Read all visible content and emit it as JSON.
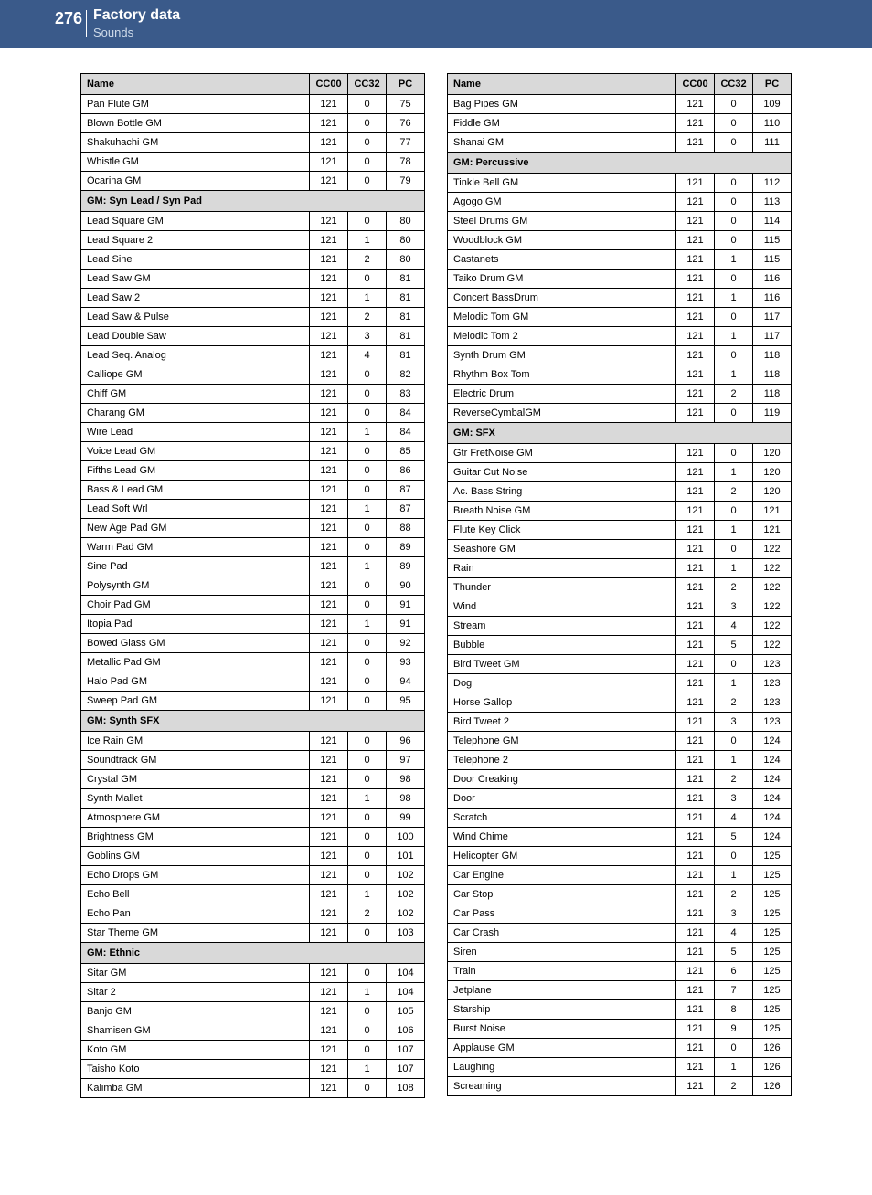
{
  "header": {
    "page_number": "276",
    "title": "Factory data",
    "subtitle": "Sounds"
  },
  "columns": {
    "name": "Name",
    "cc00": "CC00",
    "cc32": "CC32",
    "pc": "PC"
  },
  "left": [
    {
      "type": "row",
      "name": "Pan Flute GM",
      "cc00": "121",
      "cc32": "0",
      "pc": "75"
    },
    {
      "type": "row",
      "name": "Blown Bottle GM",
      "cc00": "121",
      "cc32": "0",
      "pc": "76"
    },
    {
      "type": "row",
      "name": "Shakuhachi GM",
      "cc00": "121",
      "cc32": "0",
      "pc": "77"
    },
    {
      "type": "row",
      "name": "Whistle GM",
      "cc00": "121",
      "cc32": "0",
      "pc": "78"
    },
    {
      "type": "row",
      "name": "Ocarina GM",
      "cc00": "121",
      "cc32": "0",
      "pc": "79"
    },
    {
      "type": "section",
      "label": "GM: Syn Lead / Syn Pad"
    },
    {
      "type": "row",
      "name": "Lead Square GM",
      "cc00": "121",
      "cc32": "0",
      "pc": "80"
    },
    {
      "type": "row",
      "name": "Lead Square 2",
      "cc00": "121",
      "cc32": "1",
      "pc": "80"
    },
    {
      "type": "row",
      "name": "Lead Sine",
      "cc00": "121",
      "cc32": "2",
      "pc": "80"
    },
    {
      "type": "row",
      "name": "Lead Saw GM",
      "cc00": "121",
      "cc32": "0",
      "pc": "81"
    },
    {
      "type": "row",
      "name": "Lead Saw 2",
      "cc00": "121",
      "cc32": "1",
      "pc": "81"
    },
    {
      "type": "row",
      "name": "Lead Saw & Pulse",
      "cc00": "121",
      "cc32": "2",
      "pc": "81"
    },
    {
      "type": "row",
      "name": "Lead Double Saw",
      "cc00": "121",
      "cc32": "3",
      "pc": "81"
    },
    {
      "type": "row",
      "name": "Lead Seq. Analog",
      "cc00": "121",
      "cc32": "4",
      "pc": "81"
    },
    {
      "type": "row",
      "name": "Calliope GM",
      "cc00": "121",
      "cc32": "0",
      "pc": "82"
    },
    {
      "type": "row",
      "name": "Chiff GM",
      "cc00": "121",
      "cc32": "0",
      "pc": "83"
    },
    {
      "type": "row",
      "name": "Charang GM",
      "cc00": "121",
      "cc32": "0",
      "pc": "84"
    },
    {
      "type": "row",
      "name": "Wire Lead",
      "cc00": "121",
      "cc32": "1",
      "pc": "84"
    },
    {
      "type": "row",
      "name": "Voice Lead GM",
      "cc00": "121",
      "cc32": "0",
      "pc": "85"
    },
    {
      "type": "row",
      "name": "Fifths Lead GM",
      "cc00": "121",
      "cc32": "0",
      "pc": "86"
    },
    {
      "type": "row",
      "name": "Bass & Lead GM",
      "cc00": "121",
      "cc32": "0",
      "pc": "87"
    },
    {
      "type": "row",
      "name": "Lead Soft Wrl",
      "cc00": "121",
      "cc32": "1",
      "pc": "87"
    },
    {
      "type": "row",
      "name": "New Age Pad GM",
      "cc00": "121",
      "cc32": "0",
      "pc": "88"
    },
    {
      "type": "row",
      "name": "Warm Pad GM",
      "cc00": "121",
      "cc32": "0",
      "pc": "89"
    },
    {
      "type": "row",
      "name": "Sine Pad",
      "cc00": "121",
      "cc32": "1",
      "pc": "89"
    },
    {
      "type": "row",
      "name": "Polysynth GM",
      "cc00": "121",
      "cc32": "0",
      "pc": "90"
    },
    {
      "type": "row",
      "name": "Choir Pad GM",
      "cc00": "121",
      "cc32": "0",
      "pc": "91"
    },
    {
      "type": "row",
      "name": "Itopia Pad",
      "cc00": "121",
      "cc32": "1",
      "pc": "91"
    },
    {
      "type": "row",
      "name": "Bowed Glass GM",
      "cc00": "121",
      "cc32": "0",
      "pc": "92"
    },
    {
      "type": "row",
      "name": "Metallic Pad GM",
      "cc00": "121",
      "cc32": "0",
      "pc": "93"
    },
    {
      "type": "row",
      "name": "Halo Pad GM",
      "cc00": "121",
      "cc32": "0",
      "pc": "94"
    },
    {
      "type": "row",
      "name": "Sweep Pad GM",
      "cc00": "121",
      "cc32": "0",
      "pc": "95"
    },
    {
      "type": "section",
      "label": "GM: Synth SFX"
    },
    {
      "type": "row",
      "name": "Ice Rain GM",
      "cc00": "121",
      "cc32": "0",
      "pc": "96"
    },
    {
      "type": "row",
      "name": "Soundtrack GM",
      "cc00": "121",
      "cc32": "0",
      "pc": "97"
    },
    {
      "type": "row",
      "name": "Crystal GM",
      "cc00": "121",
      "cc32": "0",
      "pc": "98"
    },
    {
      "type": "row",
      "name": "Synth Mallet",
      "cc00": "121",
      "cc32": "1",
      "pc": "98"
    },
    {
      "type": "row",
      "name": "Atmosphere GM",
      "cc00": "121",
      "cc32": "0",
      "pc": "99"
    },
    {
      "type": "row",
      "name": "Brightness GM",
      "cc00": "121",
      "cc32": "0",
      "pc": "100"
    },
    {
      "type": "row",
      "name": "Goblins GM",
      "cc00": "121",
      "cc32": "0",
      "pc": "101"
    },
    {
      "type": "row",
      "name": "Echo Drops GM",
      "cc00": "121",
      "cc32": "0",
      "pc": "102"
    },
    {
      "type": "row",
      "name": "Echo Bell",
      "cc00": "121",
      "cc32": "1",
      "pc": "102"
    },
    {
      "type": "row",
      "name": "Echo Pan",
      "cc00": "121",
      "cc32": "2",
      "pc": "102"
    },
    {
      "type": "row",
      "name": "Star Theme GM",
      "cc00": "121",
      "cc32": "0",
      "pc": "103"
    },
    {
      "type": "section",
      "label": "GM: Ethnic"
    },
    {
      "type": "row",
      "name": "Sitar GM",
      "cc00": "121",
      "cc32": "0",
      "pc": "104"
    },
    {
      "type": "row",
      "name": "Sitar 2",
      "cc00": "121",
      "cc32": "1",
      "pc": "104"
    },
    {
      "type": "row",
      "name": "Banjo GM",
      "cc00": "121",
      "cc32": "0",
      "pc": "105"
    },
    {
      "type": "row",
      "name": "Shamisen GM",
      "cc00": "121",
      "cc32": "0",
      "pc": "106"
    },
    {
      "type": "row",
      "name": "Koto GM",
      "cc00": "121",
      "cc32": "0",
      "pc": "107"
    },
    {
      "type": "row",
      "name": "Taisho Koto",
      "cc00": "121",
      "cc32": "1",
      "pc": "107"
    },
    {
      "type": "row",
      "name": "Kalimba GM",
      "cc00": "121",
      "cc32": "0",
      "pc": "108"
    }
  ],
  "right": [
    {
      "type": "row",
      "name": "Bag Pipes GM",
      "cc00": "121",
      "cc32": "0",
      "pc": "109"
    },
    {
      "type": "row",
      "name": "Fiddle GM",
      "cc00": "121",
      "cc32": "0",
      "pc": "110"
    },
    {
      "type": "row",
      "name": "Shanai GM",
      "cc00": "121",
      "cc32": "0",
      "pc": "111"
    },
    {
      "type": "section",
      "label": "GM: Percussive"
    },
    {
      "type": "row",
      "name": "Tinkle Bell GM",
      "cc00": "121",
      "cc32": "0",
      "pc": "112"
    },
    {
      "type": "row",
      "name": "Agogo GM",
      "cc00": "121",
      "cc32": "0",
      "pc": "113"
    },
    {
      "type": "row",
      "name": "Steel Drums GM",
      "cc00": "121",
      "cc32": "0",
      "pc": "114"
    },
    {
      "type": "row",
      "name": "Woodblock GM",
      "cc00": "121",
      "cc32": "0",
      "pc": "115"
    },
    {
      "type": "row",
      "name": "Castanets",
      "cc00": "121",
      "cc32": "1",
      "pc": "115"
    },
    {
      "type": "row",
      "name": "Taiko Drum GM",
      "cc00": "121",
      "cc32": "0",
      "pc": "116"
    },
    {
      "type": "row",
      "name": "Concert BassDrum",
      "cc00": "121",
      "cc32": "1",
      "pc": "116"
    },
    {
      "type": "row",
      "name": "Melodic Tom GM",
      "cc00": "121",
      "cc32": "0",
      "pc": "117"
    },
    {
      "type": "row",
      "name": "Melodic Tom 2",
      "cc00": "121",
      "cc32": "1",
      "pc": "117"
    },
    {
      "type": "row",
      "name": "Synth Drum GM",
      "cc00": "121",
      "cc32": "0",
      "pc": "118"
    },
    {
      "type": "row",
      "name": "Rhythm Box Tom",
      "cc00": "121",
      "cc32": "1",
      "pc": "118"
    },
    {
      "type": "row",
      "name": "Electric Drum",
      "cc00": "121",
      "cc32": "2",
      "pc": "118"
    },
    {
      "type": "row",
      "name": "ReverseCymbalGM",
      "cc00": "121",
      "cc32": "0",
      "pc": "119"
    },
    {
      "type": "section",
      "label": "GM: SFX"
    },
    {
      "type": "row",
      "name": "Gtr FretNoise GM",
      "cc00": "121",
      "cc32": "0",
      "pc": "120"
    },
    {
      "type": "row",
      "name": "Guitar Cut Noise",
      "cc00": "121",
      "cc32": "1",
      "pc": "120"
    },
    {
      "type": "row",
      "name": "Ac. Bass String",
      "cc00": "121",
      "cc32": "2",
      "pc": "120"
    },
    {
      "type": "row",
      "name": "Breath Noise GM",
      "cc00": "121",
      "cc32": "0",
      "pc": "121"
    },
    {
      "type": "row",
      "name": "Flute Key Click",
      "cc00": "121",
      "cc32": "1",
      "pc": "121"
    },
    {
      "type": "row",
      "name": "Seashore GM",
      "cc00": "121",
      "cc32": "0",
      "pc": "122"
    },
    {
      "type": "row",
      "name": "Rain",
      "cc00": "121",
      "cc32": "1",
      "pc": "122"
    },
    {
      "type": "row",
      "name": "Thunder",
      "cc00": "121",
      "cc32": "2",
      "pc": "122"
    },
    {
      "type": "row",
      "name": "Wind",
      "cc00": "121",
      "cc32": "3",
      "pc": "122"
    },
    {
      "type": "row",
      "name": "Stream",
      "cc00": "121",
      "cc32": "4",
      "pc": "122"
    },
    {
      "type": "row",
      "name": "Bubble",
      "cc00": "121",
      "cc32": "5",
      "pc": "122"
    },
    {
      "type": "row",
      "name": "Bird Tweet GM",
      "cc00": "121",
      "cc32": "0",
      "pc": "123"
    },
    {
      "type": "row",
      "name": "Dog",
      "cc00": "121",
      "cc32": "1",
      "pc": "123"
    },
    {
      "type": "row",
      "name": "Horse Gallop",
      "cc00": "121",
      "cc32": "2",
      "pc": "123"
    },
    {
      "type": "row",
      "name": "Bird Tweet 2",
      "cc00": "121",
      "cc32": "3",
      "pc": "123"
    },
    {
      "type": "row",
      "name": "Telephone GM",
      "cc00": "121",
      "cc32": "0",
      "pc": "124"
    },
    {
      "type": "row",
      "name": "Telephone 2",
      "cc00": "121",
      "cc32": "1",
      "pc": "124"
    },
    {
      "type": "row",
      "name": "Door Creaking",
      "cc00": "121",
      "cc32": "2",
      "pc": "124"
    },
    {
      "type": "row",
      "name": "Door",
      "cc00": "121",
      "cc32": "3",
      "pc": "124"
    },
    {
      "type": "row",
      "name": "Scratch",
      "cc00": "121",
      "cc32": "4",
      "pc": "124"
    },
    {
      "type": "row",
      "name": "Wind Chime",
      "cc00": "121",
      "cc32": "5",
      "pc": "124"
    },
    {
      "type": "row",
      "name": "Helicopter GM",
      "cc00": "121",
      "cc32": "0",
      "pc": "125"
    },
    {
      "type": "row",
      "name": "Car Engine",
      "cc00": "121",
      "cc32": "1",
      "pc": "125"
    },
    {
      "type": "row",
      "name": "Car Stop",
      "cc00": "121",
      "cc32": "2",
      "pc": "125"
    },
    {
      "type": "row",
      "name": "Car Pass",
      "cc00": "121",
      "cc32": "3",
      "pc": "125"
    },
    {
      "type": "row",
      "name": "Car Crash",
      "cc00": "121",
      "cc32": "4",
      "pc": "125"
    },
    {
      "type": "row",
      "name": "Siren",
      "cc00": "121",
      "cc32": "5",
      "pc": "125"
    },
    {
      "type": "row",
      "name": "Train",
      "cc00": "121",
      "cc32": "6",
      "pc": "125"
    },
    {
      "type": "row",
      "name": "Jetplane",
      "cc00": "121",
      "cc32": "7",
      "pc": "125"
    },
    {
      "type": "row",
      "name": "Starship",
      "cc00": "121",
      "cc32": "8",
      "pc": "125"
    },
    {
      "type": "row",
      "name": "Burst Noise",
      "cc00": "121",
      "cc32": "9",
      "pc": "125"
    },
    {
      "type": "row",
      "name": "Applause GM",
      "cc00": "121",
      "cc32": "0",
      "pc": "126"
    },
    {
      "type": "row",
      "name": "Laughing",
      "cc00": "121",
      "cc32": "1",
      "pc": "126"
    },
    {
      "type": "row",
      "name": "Screaming",
      "cc00": "121",
      "cc32": "2",
      "pc": "126"
    }
  ],
  "style": {
    "header_band_color": "#3a5a8a",
    "header_text_color": "#ffffff",
    "header_subtitle_color": "#cfdbea",
    "table_header_bg": "#d9d9d9",
    "table_border": "#000000",
    "font_size_table": 11,
    "font_size_page_number": 18,
    "font_size_title": 16,
    "font_size_subtitle": 13
  }
}
